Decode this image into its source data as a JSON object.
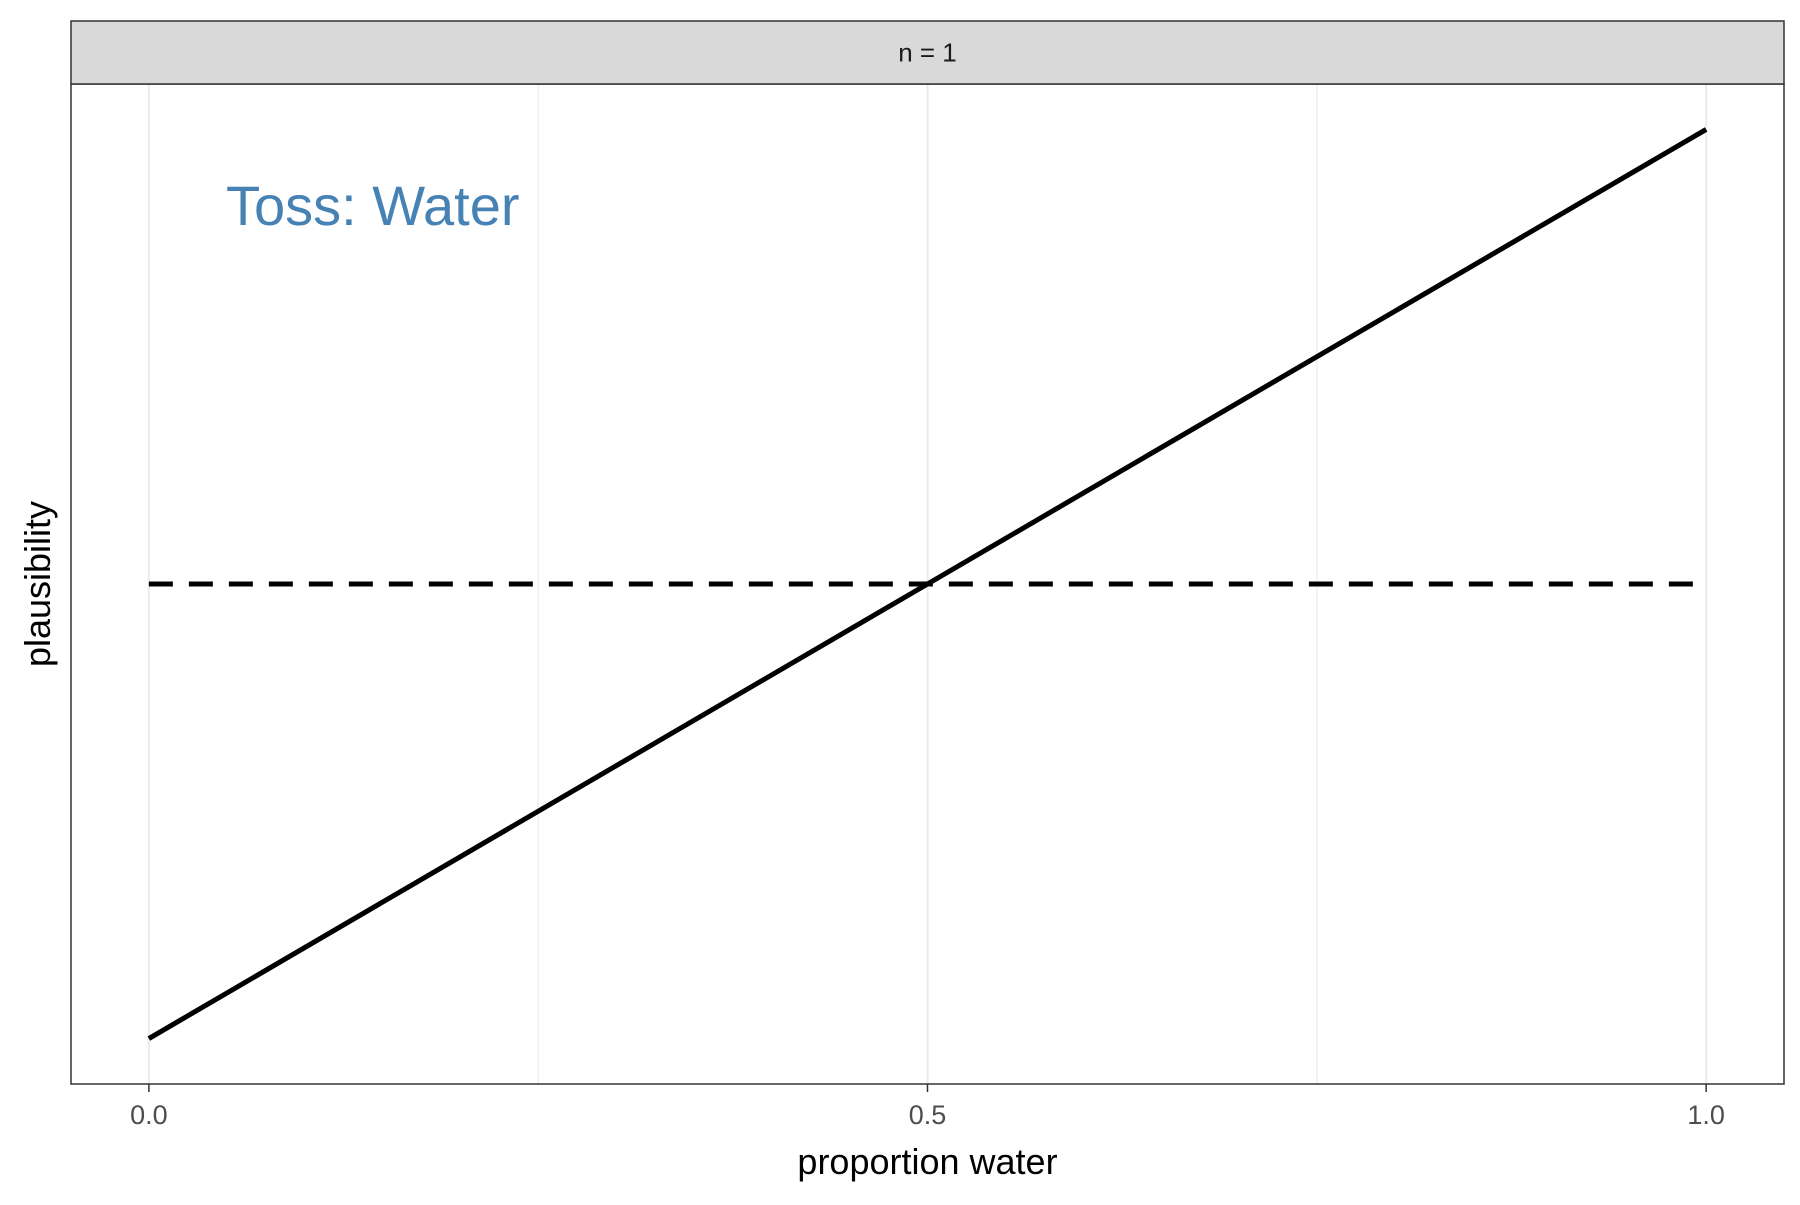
{
  "chart_data": {
    "type": "line",
    "facet_label": "n = 1",
    "annotation": {
      "text": "Toss: Water",
      "color": "#4682B4"
    },
    "xlabel": "proportion water",
    "ylabel": "plausibility",
    "xlim": [
      -0.05,
      1.05
    ],
    "ylim": [
      -0.05,
      1.05
    ],
    "x_ticks": [
      0.0,
      0.5,
      1.0
    ],
    "x_tick_labels": [
      "0.0",
      "0.5",
      "1.0"
    ],
    "y_ticks": [],
    "grid": "vertical",
    "series": [
      {
        "style": "solid",
        "x": [
          0.0,
          1.0
        ],
        "y": [
          0.0,
          1.0
        ]
      },
      {
        "style": "dashed",
        "x": [
          0.0,
          1.0
        ],
        "y": [
          0.5,
          0.5
        ]
      }
    ],
    "colors": {
      "line": "#000000",
      "grid": "#EBEBEB",
      "strip_bg": "#D9D9D9",
      "panel_border": "#333333",
      "tick_text": "#4D4D4D"
    }
  }
}
